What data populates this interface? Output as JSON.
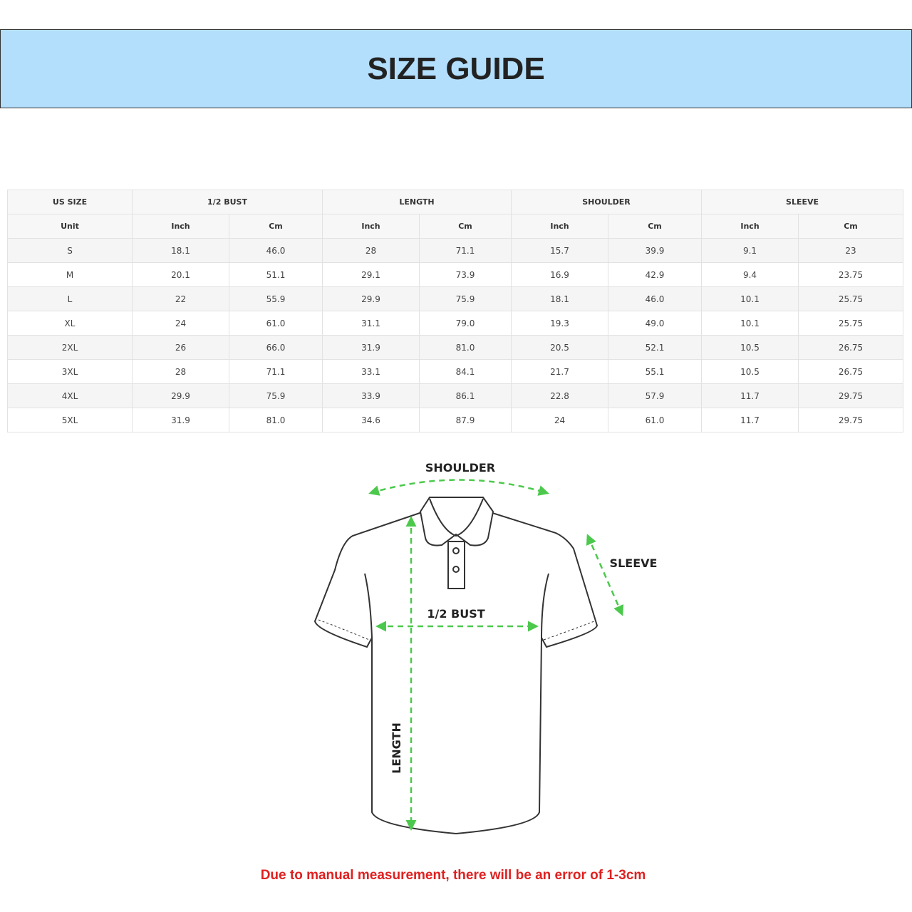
{
  "header": {
    "title": "SIZE GUIDE"
  },
  "table": {
    "groups": [
      "US SIZE",
      "1/2 BUST",
      "LENGTH",
      "SHOULDER",
      "SLEEVE"
    ],
    "units": [
      "Unit",
      "Inch",
      "Cm",
      "Inch",
      "Cm",
      "Inch",
      "Cm",
      "Inch",
      "Cm"
    ],
    "rows": [
      [
        "S",
        "18.1",
        "46.0",
        "28",
        "71.1",
        "15.7",
        "39.9",
        "9.1",
        "23"
      ],
      [
        "M",
        "20.1",
        "51.1",
        "29.1",
        "73.9",
        "16.9",
        "42.9",
        "9.4",
        "23.75"
      ],
      [
        "L",
        "22",
        "55.9",
        "29.9",
        "75.9",
        "18.1",
        "46.0",
        "10.1",
        "25.75"
      ],
      [
        "XL",
        "24",
        "61.0",
        "31.1",
        "79.0",
        "19.3",
        "49.0",
        "10.1",
        "25.75"
      ],
      [
        "2XL",
        "26",
        "66.0",
        "31.9",
        "81.0",
        "20.5",
        "52.1",
        "10.5",
        "26.75"
      ],
      [
        "3XL",
        "28",
        "71.1",
        "33.1",
        "84.1",
        "21.7",
        "55.1",
        "10.5",
        "26.75"
      ],
      [
        "4XL",
        "29.9",
        "75.9",
        "33.9",
        "86.1",
        "22.8",
        "57.9",
        "11.7",
        "29.75"
      ],
      [
        "5XL",
        "31.9",
        "81.0",
        "34.6",
        "87.9",
        "24",
        "61.0",
        "11.7",
        "29.75"
      ]
    ]
  },
  "diagram": {
    "shoulder": "SHOULDER",
    "sleeve": "SLEEVE",
    "bust": "1/2 BUST",
    "length": "LENGTH"
  },
  "note": "Due to manual measurement, there will be an error of 1-3cm"
}
